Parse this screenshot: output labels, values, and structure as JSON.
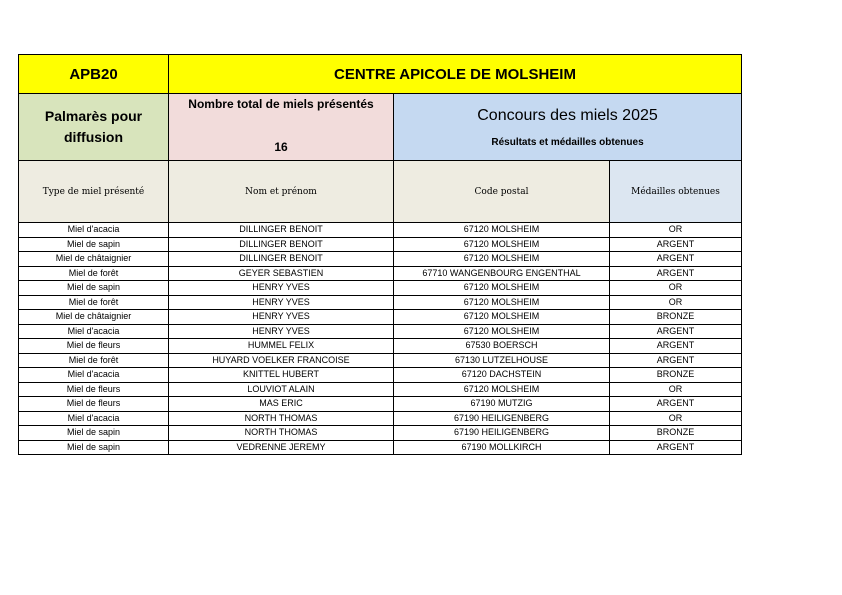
{
  "title": {
    "left": "APB20",
    "center": "CENTRE APICOLE DE MOLSHEIM"
  },
  "header": {
    "palmares": "Palmarès pour diffusion",
    "total_label": "Nombre total de miels présentés",
    "total_value": "16",
    "concours": "Concours des miels 2025",
    "resultats": "Résultats et médailles obtenues"
  },
  "columns": [
    "Type de miel présenté",
    "Nom et prénom",
    "Code postal",
    "Médailles obtenues"
  ],
  "rows": [
    [
      "Miel d'acacia",
      "DILLINGER BENOIT",
      "67120  MOLSHEIM",
      "OR"
    ],
    [
      "Miel de sapin",
      "DILLINGER BENOIT",
      "67120  MOLSHEIM",
      "ARGENT"
    ],
    [
      "Miel de châtaignier",
      "DILLINGER BENOIT",
      "67120  MOLSHEIM",
      "ARGENT"
    ],
    [
      "Miel de forêt",
      "GEYER SEBASTIEN",
      "67710  WANGENBOURG ENGENTHAL",
      "ARGENT"
    ],
    [
      "Miel de sapin",
      "HENRY YVES",
      "67120  MOLSHEIM",
      "OR"
    ],
    [
      "Miel de forêt",
      "HENRY YVES",
      "67120  MOLSHEIM",
      "OR"
    ],
    [
      "Miel de châtaignier",
      "HENRY YVES",
      "67120  MOLSHEIM",
      "BRONZE"
    ],
    [
      "Miel d'acacia",
      "HENRY YVES",
      "67120  MOLSHEIM",
      "ARGENT"
    ],
    [
      "Miel de fleurs",
      "HUMMEL FELIX",
      "67530  BOERSCH",
      "ARGENT"
    ],
    [
      "Miel de forêt",
      "HUYARD VOELKER FRANCOISE",
      "67130  LUTZELHOUSE",
      "ARGENT"
    ],
    [
      "Miel d'acacia",
      "KNITTEL HUBERT",
      "67120  DACHSTEIN",
      "BRONZE"
    ],
    [
      "Miel de fleurs",
      "LOUVIOT ALAIN",
      "67120  MOLSHEIM",
      "OR"
    ],
    [
      "Miel de fleurs",
      "MAS ERIC",
      "67190  MUTZIG",
      "ARGENT"
    ],
    [
      "Miel d'acacia",
      "NORTH THOMAS",
      "67190  HEILIGENBERG",
      "OR"
    ],
    [
      "Miel de sapin",
      "NORTH THOMAS",
      "67190  HEILIGENBERG",
      "BRONZE"
    ],
    [
      "Miel de sapin",
      "VEDRENNE JEREMY",
      "67190  MOLLKIRCH",
      "ARGENT"
    ]
  ]
}
